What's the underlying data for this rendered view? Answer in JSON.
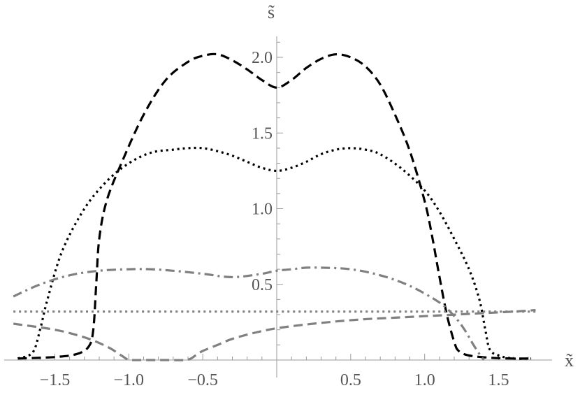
{
  "chart_data": {
    "type": "line",
    "title": "",
    "xlabel": "x̃",
    "ylabel": "s̃",
    "xlim": [
      -1.8,
      1.75
    ],
    "ylim": [
      0,
      2.15
    ],
    "grid": false,
    "x_ticks_major": [
      -1.5,
      -1.0,
      -0.5,
      0.5,
      1.0,
      1.5
    ],
    "x_tick_labels": [
      "−1.5",
      "−1.0",
      "−0.5",
      "0.5",
      "1.0",
      "1.5"
    ],
    "y_ticks_major": [
      0.5,
      1.0,
      1.5,
      2.0
    ],
    "y_tick_labels": [
      "0.5",
      "1.0",
      "1.5",
      "2.0"
    ],
    "series": [
      {
        "style": "dashed",
        "color": "#000000",
        "x": [
          -1.75,
          -1.5,
          -1.35,
          -1.27,
          -1.24,
          -1.22,
          -1.2,
          -1.15,
          -1.05,
          -0.9,
          -0.75,
          -0.6,
          -0.5,
          -0.4,
          -0.3,
          -0.2,
          -0.1,
          0.0,
          0.1,
          0.2,
          0.3,
          0.4,
          0.5,
          0.6,
          0.7,
          0.8,
          0.9,
          1.0,
          1.05,
          1.1,
          1.15,
          1.2,
          1.23,
          1.3,
          1.45,
          1.6,
          1.72
        ],
        "y": [
          0.01,
          0.02,
          0.04,
          0.09,
          0.2,
          0.5,
          0.8,
          1.05,
          1.3,
          1.62,
          1.85,
          1.97,
          2.01,
          2.02,
          1.98,
          1.92,
          1.85,
          1.8,
          1.85,
          1.93,
          1.99,
          2.02,
          2.0,
          1.94,
          1.82,
          1.62,
          1.38,
          1.05,
          0.82,
          0.55,
          0.3,
          0.12,
          0.06,
          0.03,
          0.015,
          0.01,
          0.01
        ]
      },
      {
        "style": "dotted",
        "color": "#000000",
        "x": [
          -1.75,
          -1.65,
          -1.6,
          -1.55,
          -1.45,
          -1.3,
          -1.15,
          -1.0,
          -0.85,
          -0.7,
          -0.6,
          -0.5,
          -0.4,
          -0.3,
          -0.2,
          -0.1,
          0.0,
          0.1,
          0.2,
          0.3,
          0.4,
          0.5,
          0.6,
          0.7,
          0.85,
          1.0,
          1.1,
          1.2,
          1.3,
          1.37,
          1.41,
          1.44,
          1.5,
          1.6,
          1.72
        ],
        "y": [
          0.01,
          0.05,
          0.2,
          0.4,
          0.72,
          1.0,
          1.18,
          1.3,
          1.37,
          1.39,
          1.4,
          1.4,
          1.38,
          1.35,
          1.31,
          1.27,
          1.25,
          1.27,
          1.31,
          1.36,
          1.39,
          1.4,
          1.39,
          1.36,
          1.26,
          1.12,
          0.98,
          0.8,
          0.6,
          0.4,
          0.2,
          0.07,
          0.03,
          0.01,
          0.01
        ]
      },
      {
        "style": "dashdot",
        "color": "#808080",
        "x": [
          -1.78,
          -1.6,
          -1.4,
          -1.2,
          -1.0,
          -0.85,
          -0.7,
          -0.5,
          -0.35,
          -0.25,
          -0.1,
          0.0,
          0.1,
          0.2,
          0.3,
          0.5,
          0.7,
          0.9,
          1.1,
          1.2,
          1.27,
          1.33,
          1.37,
          1.4
        ],
        "y": [
          0.42,
          0.5,
          0.56,
          0.59,
          0.6,
          0.6,
          0.59,
          0.57,
          0.55,
          0.55,
          0.57,
          0.59,
          0.6,
          0.61,
          0.61,
          0.6,
          0.56,
          0.49,
          0.38,
          0.29,
          0.2,
          0.1,
          0.04,
          0.0
        ]
      },
      {
        "style": "dotted",
        "color": "#808080",
        "x": [
          -1.78,
          0.0,
          1.2,
          1.75
        ],
        "y": [
          0.32,
          0.32,
          0.32,
          0.32
        ]
      },
      {
        "style": "dashed",
        "color": "#808080",
        "x": [
          -1.78,
          -1.5,
          -1.3,
          -1.15,
          -1.05,
          -1.01,
          -0.98,
          -0.9,
          -0.75,
          -0.62,
          -0.58,
          -0.55,
          -0.5,
          -0.4,
          -0.3,
          -0.15,
          0.0,
          0.2,
          0.4,
          0.6,
          0.8,
          1.0,
          1.2,
          1.4,
          1.6,
          1.75
        ],
        "y": [
          0.24,
          0.2,
          0.15,
          0.09,
          0.03,
          0.005,
          0.0,
          0.0,
          0.0,
          0.0,
          0.01,
          0.03,
          0.06,
          0.1,
          0.14,
          0.18,
          0.21,
          0.235,
          0.255,
          0.27,
          0.28,
          0.29,
          0.3,
          0.31,
          0.32,
          0.33
        ]
      }
    ]
  }
}
